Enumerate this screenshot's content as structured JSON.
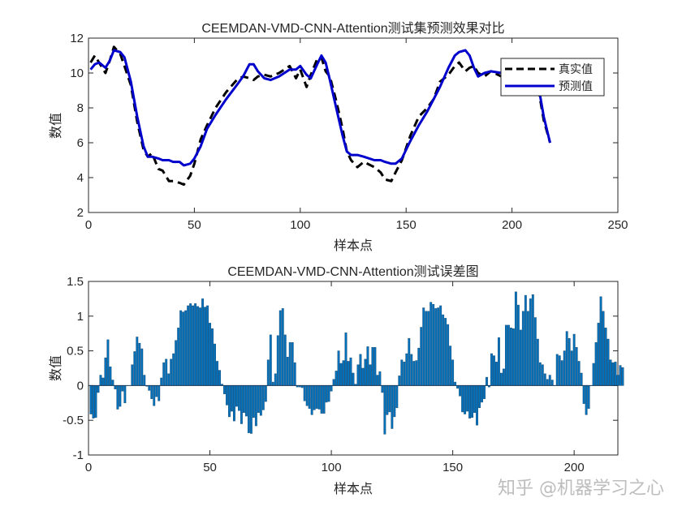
{
  "watermark": "知乎 @机器学习之心",
  "colors": {
    "true_line": "#000000",
    "pred_line": "#0000CC",
    "bar_fill": "#0072BD",
    "bar_edge": "#1a4f7a"
  },
  "chart_data": [
    {
      "type": "line",
      "title": "CEEMDAN-VMD-CNN-Attention测试集预测效果对比",
      "xlabel": "样本点",
      "ylabel": "数值",
      "xlim": [
        0,
        250
      ],
      "ylim": [
        2,
        12
      ],
      "xticks": [
        0,
        50,
        100,
        150,
        200,
        250
      ],
      "yticks": [
        2,
        4,
        6,
        8,
        10,
        12
      ],
      "grid": false,
      "legend_placement": "top-right",
      "x": [
        1,
        3,
        5,
        8,
        10,
        12,
        15,
        17,
        20,
        23,
        26,
        28,
        30,
        33,
        35,
        38,
        40,
        43,
        45,
        48,
        50,
        53,
        56,
        60,
        65,
        70,
        73,
        76,
        78,
        80,
        83,
        86,
        90,
        95,
        98,
        100,
        103,
        105,
        108,
        110,
        112,
        114,
        117,
        120,
        122,
        124,
        127,
        130,
        135,
        138,
        140,
        143,
        145,
        148,
        152,
        156,
        160,
        163,
        166,
        170,
        173,
        175,
        178,
        180,
        182,
        184,
        187,
        190,
        195,
        200,
        205,
        210,
        212,
        215,
        218
      ],
      "series": [
        {
          "name": "真实值",
          "style": "dashed",
          "values": [
            10.6,
            11.0,
            10.6,
            10.0,
            10.7,
            11.5,
            11.1,
            10.4,
            9.3,
            7.2,
            5.6,
            5.2,
            5.4,
            4.5,
            4.4,
            3.8,
            3.8,
            3.7,
            3.6,
            4.1,
            4.8,
            6.2,
            7.0,
            8.0,
            8.9,
            9.6,
            9.8,
            9.7,
            9.6,
            9.8,
            9.9,
            9.8,
            10.0,
            10.4,
            9.7,
            10.2,
            9.2,
            9.9,
            10.8,
            10.9,
            10.1,
            9.8,
            8.4,
            6.8,
            5.5,
            5.0,
            4.6,
            4.9,
            4.6,
            4.3,
            3.9,
            3.8,
            4.3,
            5.0,
            6.4,
            7.5,
            8.0,
            8.5,
            9.5,
            9.9,
            10.4,
            10.6,
            10.1,
            10.3,
            10.4,
            10.0,
            9.8,
            10.1,
            9.8,
            9.7,
            9.6,
            9.8,
            9.4,
            7.3,
            6.0
          ]
        },
        {
          "name": "预测值",
          "style": "solid",
          "values": [
            10.2,
            10.5,
            10.6,
            10.3,
            10.7,
            11.3,
            11.2,
            10.9,
            9.5,
            7.5,
            5.8,
            5.2,
            5.2,
            5.1,
            5.0,
            5.0,
            4.9,
            4.9,
            4.7,
            4.8,
            5.1,
            5.8,
            6.8,
            7.6,
            8.5,
            9.3,
            9.8,
            10.5,
            10.5,
            10.1,
            9.7,
            9.6,
            9.8,
            10.2,
            10.2,
            10.4,
            9.9,
            9.7,
            10.5,
            11.0,
            10.6,
            9.6,
            8.0,
            6.4,
            5.5,
            5.3,
            5.3,
            5.2,
            5.0,
            5.0,
            4.9,
            4.8,
            4.8,
            5.1,
            6.1,
            7.0,
            7.8,
            8.5,
            9.2,
            10.3,
            11.0,
            11.2,
            11.3,
            11.0,
            10.3,
            9.8,
            10.0,
            10.1,
            10.0,
            10.0,
            10.0,
            10.0,
            9.6,
            7.5,
            6.0
          ]
        }
      ]
    },
    {
      "type": "bar",
      "title": "CEEMDAN-VMD-CNN-Attention测试误差图",
      "xlabel": "样本点",
      "ylabel": "数值",
      "xlim": [
        0,
        218
      ],
      "ylim": [
        -1,
        1.5
      ],
      "xticks": [
        0,
        50,
        100,
        150,
        200
      ],
      "yticks": [
        -1,
        -0.5,
        0,
        0.5,
        1,
        1.5
      ],
      "grid": false,
      "values": [
        -0.41,
        -0.47,
        -0.46,
        -0.1,
        0.15,
        0.11,
        0.4,
        0.66,
        0.27,
        0.08,
        -0.05,
        -0.34,
        -0.3,
        -0.08,
        -0.25,
        0.0,
        0.0,
        0.3,
        0.49,
        0.7,
        0.61,
        0.53,
        0.15,
        -0.01,
        -0.07,
        -0.19,
        -0.29,
        -0.16,
        -0.22,
        0.11,
        0.33,
        0.38,
        0.17,
        0.38,
        0.46,
        0.65,
        0.83,
        1.08,
        1.06,
        1.08,
        1.15,
        1.18,
        1.15,
        1.18,
        1.14,
        1.12,
        1.25,
        1.13,
        1.15,
        0.9,
        0.82,
        0.6,
        0.35,
        0.22,
        0.02,
        -0.12,
        -0.28,
        -0.45,
        -0.37,
        -0.51,
        -0.3,
        -0.36,
        -0.55,
        -0.39,
        -0.44,
        -0.68,
        -0.69,
        -0.46,
        -0.58,
        -0.39,
        -0.43,
        -0.35,
        -0.23,
        0.37,
        0.73,
        0.05,
        0.17,
        0.72,
        1.08,
        1.11,
        0.73,
        0.41,
        0.62,
        0.62,
        0.33,
        -0.02,
        -0.02,
        -0.03,
        -0.22,
        -0.29,
        -0.33,
        -0.42,
        -0.35,
        -0.33,
        -0.34,
        -0.4,
        -0.4,
        -0.24,
        -0.23,
        -0.08,
        0.09,
        0.21,
        0.5,
        0.32,
        0.36,
        0.76,
        0.35,
        0.4,
        0.18,
        0.02,
        0.3,
        0.45,
        0.25,
        0.38,
        0.56,
        0.3,
        0.55,
        0.55,
        0.15,
        0.2,
        -0.1,
        -0.7,
        -0.42,
        -0.38,
        -0.62,
        -0.45,
        -0.32,
        0.14,
        0.37,
        0.34,
        0.46,
        0.68,
        0.45,
        0.35,
        0.36,
        0.54,
        0.84,
        1.12,
        1.07,
        1.07,
        1.2,
        1.17,
        1.11,
        1.12,
        1.15,
        1.02,
        0.97,
        0.88,
        0.57,
        0.37,
        0.05,
        -0.04,
        -0.15,
        -0.38,
        -0.41,
        -0.37,
        -0.47,
        -0.46,
        -0.39,
        -0.57,
        -0.32,
        -0.24,
        -0.19,
        0.12,
        -0.02,
        0.46,
        0.43,
        0.34,
        0.69,
        0.18,
        0.24,
        0.87,
        0.87,
        0.83,
        0.82,
        1.35,
        1.16,
        0.8,
        1.07,
        1.3,
        1.07,
        1.25,
        1.31,
        0.98,
        0.67,
        0.33,
        0.3,
        0.17,
        0.09,
        0.15,
        0.08,
        0.0,
        0.45,
        0.43,
        0.36,
        0.5,
        0.78,
        0.68,
        0.5,
        0.74,
        0.55,
        0.35,
        0.18,
        -0.26,
        -0.42,
        -0.33,
        0.0,
        0.32,
        0.62,
        0.9,
        1.28,
        1.07,
        0.83,
        0.67,
        0.37,
        0.33,
        0.34,
        0.15,
        0.29,
        0.26
      ]
    }
  ]
}
